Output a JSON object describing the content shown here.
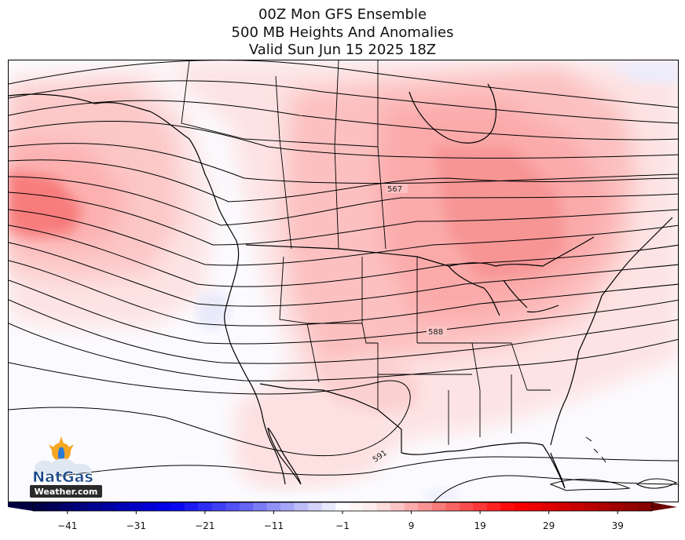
{
  "title": {
    "line1": "00Z Mon GFS Ensemble",
    "line2": "500 MB Heights And Anomalies",
    "line3": "Valid Sun Jun 15 2025 18Z"
  },
  "contour_labels": [
    "567",
    "588",
    "591"
  ],
  "colorbar": {
    "ticks": [
      "−41",
      "−31",
      "−21",
      "−11",
      "−1",
      "9",
      "19",
      "29",
      "39"
    ],
    "min": -46,
    "max": 44
  },
  "logo": {
    "line1": "NatGas",
    "line2": "Weather.com"
  },
  "colors": {
    "warm_light": "#fdd9d9",
    "warm_mid": "#fcb3b3",
    "warm_strong": "#f88a8a",
    "warm_core": "#f46a6a",
    "cool_light": "#e6e6fb",
    "contour": "#000000"
  }
}
